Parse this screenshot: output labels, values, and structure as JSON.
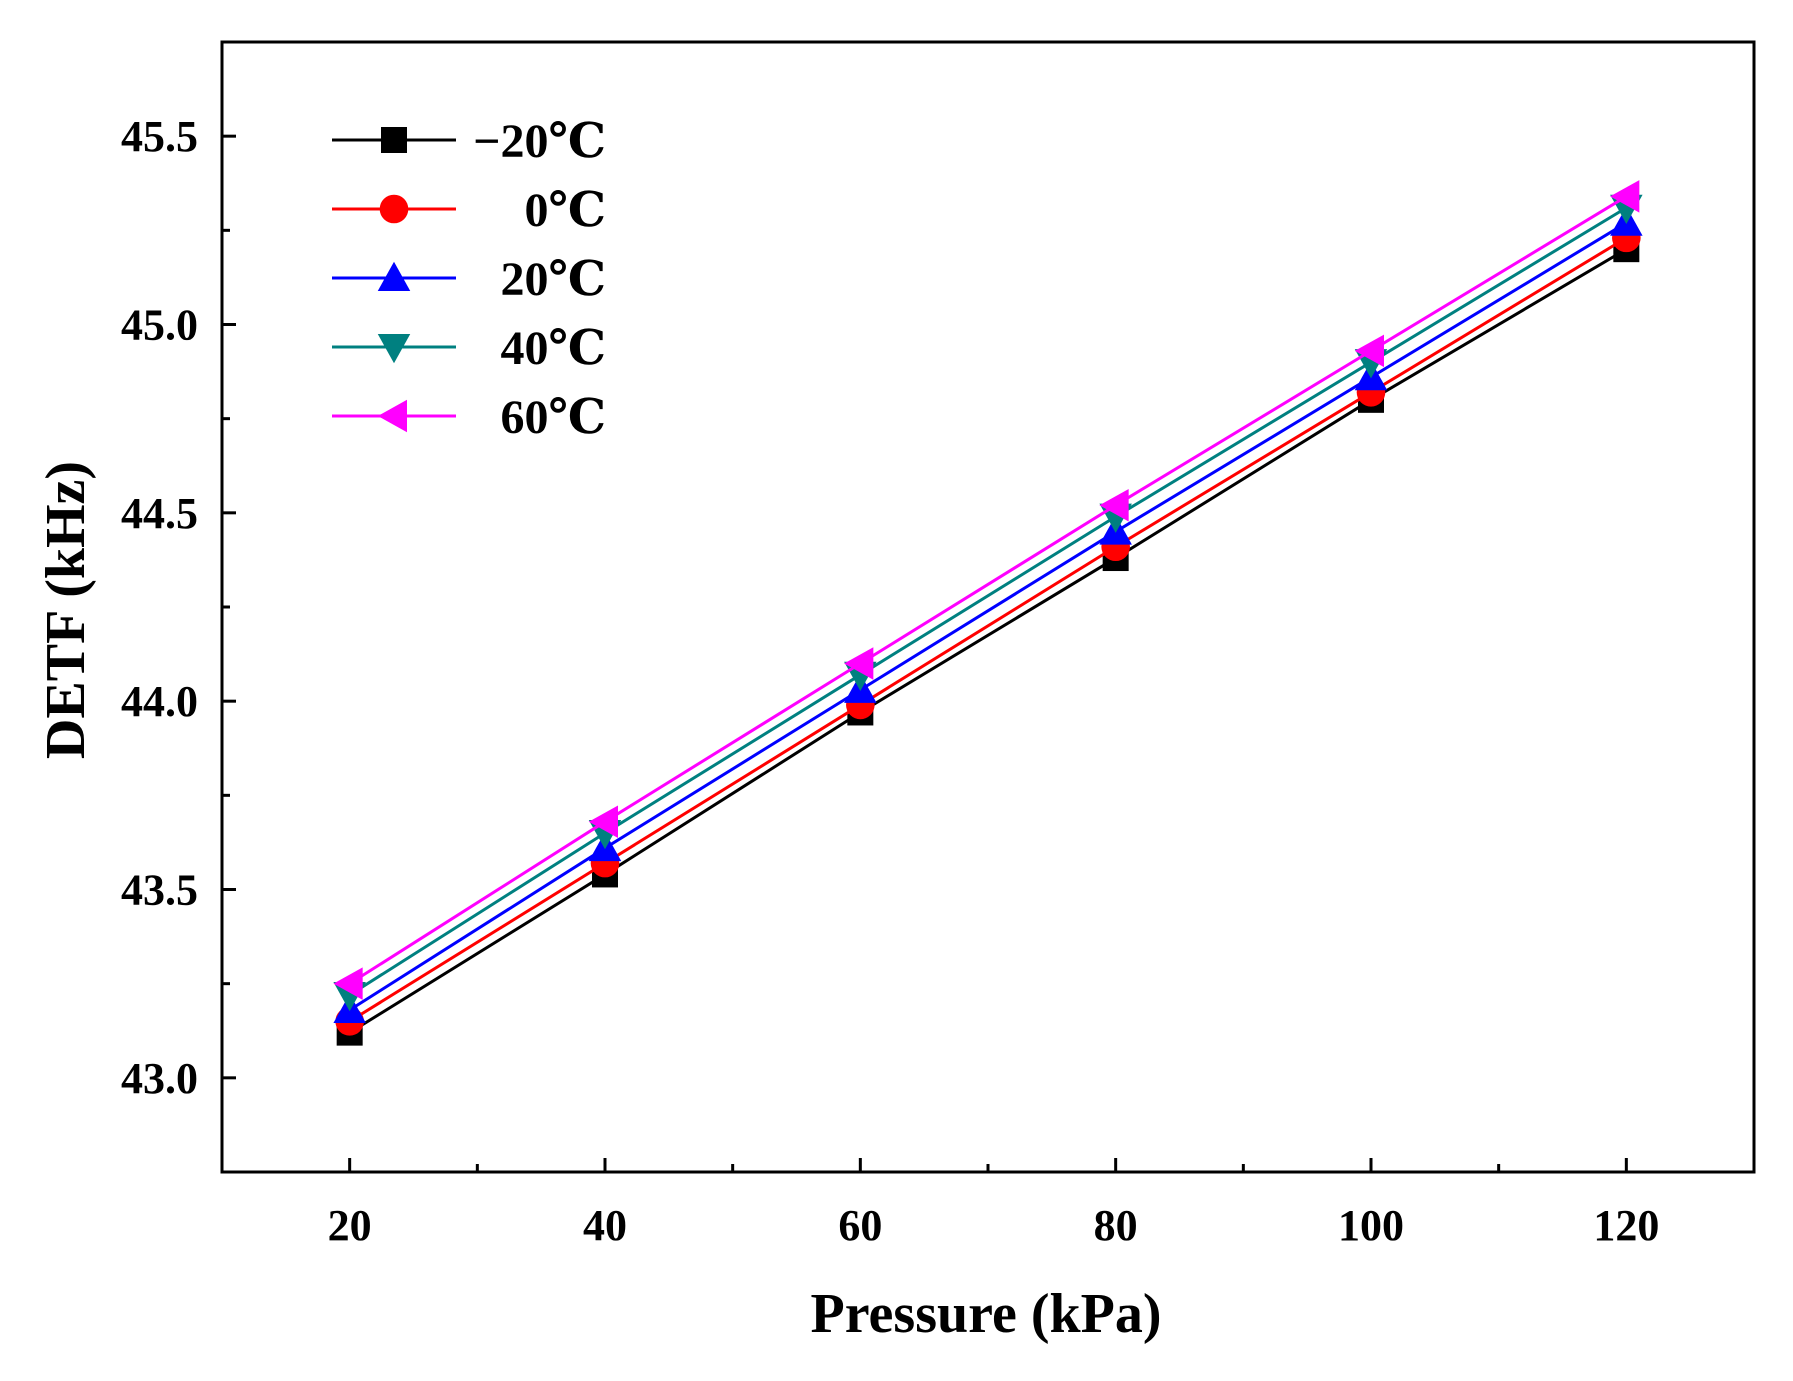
{
  "chart_data": {
    "type": "line",
    "title": "",
    "xlabel": "Pressure (kPa)",
    "ylabel": "DETF (kHz)",
    "xlim": [
      10,
      130
    ],
    "ylim": [
      42.75,
      45.75
    ],
    "x_ticks": [
      "20",
      "40",
      "60",
      "80",
      "100",
      "120"
    ],
    "y_ticks": [
      "43.0",
      "43.5",
      "44.0",
      "44.5",
      "45.0",
      "45.5"
    ],
    "grid": false,
    "legend_position": "top-left",
    "x": [
      20,
      40,
      60,
      80,
      100,
      120
    ],
    "series": [
      {
        "name": "−20℃",
        "color": "#000000",
        "marker": "square",
        "values": [
          43.12,
          43.54,
          43.97,
          44.38,
          44.8,
          45.2
        ]
      },
      {
        "name": "0℃",
        "color": "#ff0000",
        "marker": "circle",
        "values": [
          43.15,
          43.57,
          43.99,
          44.41,
          44.82,
          45.23
        ]
      },
      {
        "name": "20℃",
        "color": "#0000ff",
        "marker": "triangle-up",
        "values": [
          43.18,
          43.61,
          44.03,
          44.45,
          44.86,
          45.27
        ]
      },
      {
        "name": "40℃",
        "color": "#008080",
        "marker": "triangle-down",
        "values": [
          43.22,
          43.65,
          44.07,
          44.49,
          44.9,
          45.31
        ]
      },
      {
        "name": "60℃",
        "color": "#ff00ff",
        "marker": "triangle-left",
        "values": [
          43.25,
          43.68,
          44.1,
          44.52,
          44.93,
          45.34
        ]
      }
    ]
  }
}
